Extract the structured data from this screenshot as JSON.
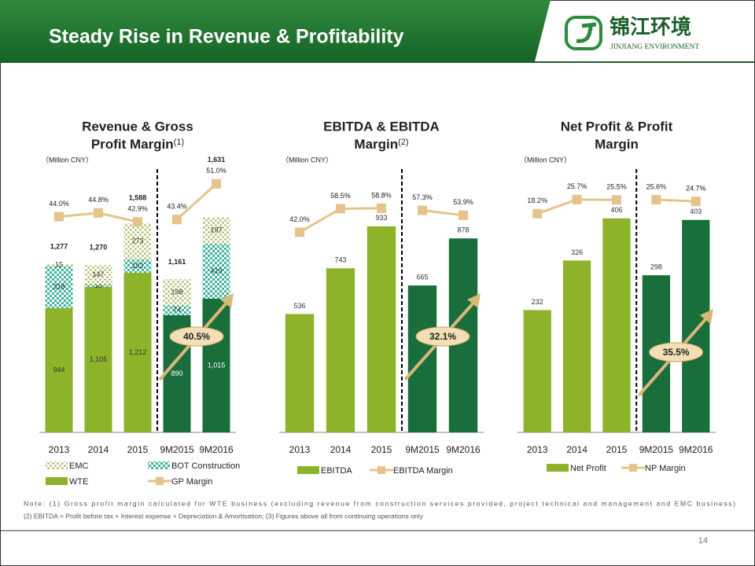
{
  "slide": {
    "title": "Steady Rise in Revenue & Profitability",
    "logo_cn": "锦江环境",
    "logo_en": "JINJIANG ENVIRONMENT",
    "notes": [
      "Note: (1) Gross profit margin calculated for WTE business (excluding revenue from construction services provided, project technical and management and EMC business)",
      "(2) EBITDA = Profit before tax + Interest expense + Depreciation & Amortisation; (3) Figures above all from continuing operations only"
    ],
    "page": 14
  },
  "chart_data": [
    {
      "type": "bar",
      "stacked": true,
      "title": [
        "Revenue & Gross",
        "Profit Margin"
      ],
      "title_note": "(1)",
      "unit": "（Million CNY）",
      "categories": [
        "2013",
        "2014",
        "2015",
        "9M2015",
        "9M2016"
      ],
      "series": [
        {
          "name": "WTE",
          "colors": [
            "#8db32b",
            "#8db32b",
            "#8db32b",
            "#1a6e3c",
            "#1a6e3c"
          ],
          "values": [
            944,
            1105,
            1212,
            890,
            1015
          ],
          "value_labels": [
            "944",
            "1,105",
            "1,212",
            "890",
            "1,015"
          ]
        },
        {
          "name": "BOT Construction",
          "color": "#3fb59f",
          "values": [
            318,
            18,
            102,
            74,
            419
          ]
        },
        {
          "name": "EMC",
          "color": "#a7b05a",
          "values": [
            15,
            147,
            273,
            198,
            197
          ]
        },
        {
          "name": "GP Margin",
          "type": "line",
          "axis": "y2",
          "color": "#e5c48c",
          "values": [
            44.0,
            44.8,
            42.9,
            43.4,
            51.0
          ],
          "value_labels": [
            "44.0%",
            "44.8%",
            "42.9%",
            "43.4%",
            "51.0%"
          ]
        }
      ],
      "total_labels": [
        "1,277",
        "1,270",
        "1,588",
        "1,161",
        "1,631"
      ],
      "annotation": "40.5%",
      "ylim": [
        0,
        2030
      ],
      "y2lim": [
        -2,
        55
      ]
    },
    {
      "type": "bar",
      "title": [
        "EBITDA & EBITDA",
        "Margin"
      ],
      "title_note": "(2)",
      "unit": "（Million CNY）",
      "categories": [
        "2013",
        "2014",
        "2015",
        "9M2015",
        "9M2016"
      ],
      "series": [
        {
          "name": "EBITDA",
          "colors": [
            "#8db32b",
            "#8db32b",
            "#8db32b",
            "#1a6e3c",
            "#1a6e3c"
          ],
          "values": [
            536,
            743,
            933,
            665,
            878
          ]
        },
        {
          "name": "EBITDA Margin",
          "type": "line",
          "axis": "y2",
          "color": "#e5c48c",
          "values": [
            42.0,
            58.5,
            58.8,
            57.3,
            53.9
          ],
          "value_labels": [
            "42.0%",
            "58.5%",
            "58.8%",
            "57.3%",
            "53.9%"
          ]
        }
      ],
      "annotation": "32.1%",
      "ylim": [
        0,
        1210
      ],
      "y2lim": [
        -98,
        89
      ]
    },
    {
      "type": "bar",
      "title": [
        "Net Profit & Profit",
        "Margin"
      ],
      "unit": "（Million CNY）",
      "categories": [
        "2013",
        "2014",
        "2015",
        "9M2015",
        "9M2016"
      ],
      "series": [
        {
          "name": "Net Profit",
          "colors": [
            "#8db32b",
            "#8db32b",
            "#8db32b",
            "#1a6e3c",
            "#1a6e3c"
          ],
          "values": [
            232,
            326,
            406,
            298,
            403
          ]
        },
        {
          "name": "NP Margin",
          "type": "line",
          "axis": "y2",
          "color": "#e5c48c",
          "values": [
            18.2,
            25.7,
            25.5,
            25.6,
            24.7
          ],
          "value_labels": [
            "18.2%",
            "25.7%",
            "25.5%",
            "25.6%",
            "24.7%"
          ]
        }
      ],
      "annotation": "35.5%",
      "ylim": [
        0,
        507
      ],
      "y2lim": [
        -98,
        44
      ]
    }
  ]
}
